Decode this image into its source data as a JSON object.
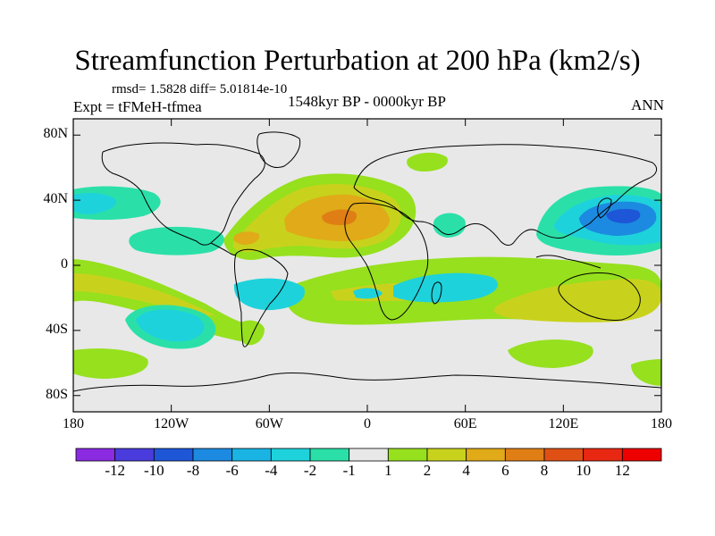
{
  "header": {
    "title": "Streamfunction Perturbation at 200 hPa (km2/s)",
    "stats": "rmsd= 1.5828 diff= 5.01814e-10",
    "experiment": "Expt = tFMeH-tfmea",
    "period": "1548kyr BP - 0000kyr BP",
    "season": "ANN"
  },
  "axes": {
    "lat_ticks": [
      {
        "value": 80,
        "label": "80N"
      },
      {
        "value": 40,
        "label": "40N"
      },
      {
        "value": 0,
        "label": "0"
      },
      {
        "value": -40,
        "label": "40S"
      },
      {
        "value": -80,
        "label": "80S"
      }
    ],
    "lon_ticks": [
      {
        "value": -180,
        "label": "180"
      },
      {
        "value": -120,
        "label": "120W"
      },
      {
        "value": -60,
        "label": "60W"
      },
      {
        "value": 0,
        "label": "0"
      },
      {
        "value": 60,
        "label": "60E"
      },
      {
        "value": 120,
        "label": "120E"
      },
      {
        "value": 180,
        "label": "180"
      }
    ]
  },
  "colorbar": {
    "labels": [
      "-12",
      "-10",
      "-8",
      "-6",
      "-4",
      "-2",
      "-1",
      "1",
      "2",
      "4",
      "6",
      "8",
      "10",
      "12"
    ],
    "colors": [
      "#8a2be2",
      "#4a3cdc",
      "#1e56d8",
      "#1c8ae0",
      "#1ab4e4",
      "#1ed2dc",
      "#2ae0a8",
      "#e8e8e8",
      "#96e01e",
      "#c8d21c",
      "#e0aa18",
      "#e07e16",
      "#e05014",
      "#e82812",
      "#ee0000"
    ]
  },
  "fields": {
    "background_color": "#e8e8e8",
    "coast_color": "#000000"
  }
}
